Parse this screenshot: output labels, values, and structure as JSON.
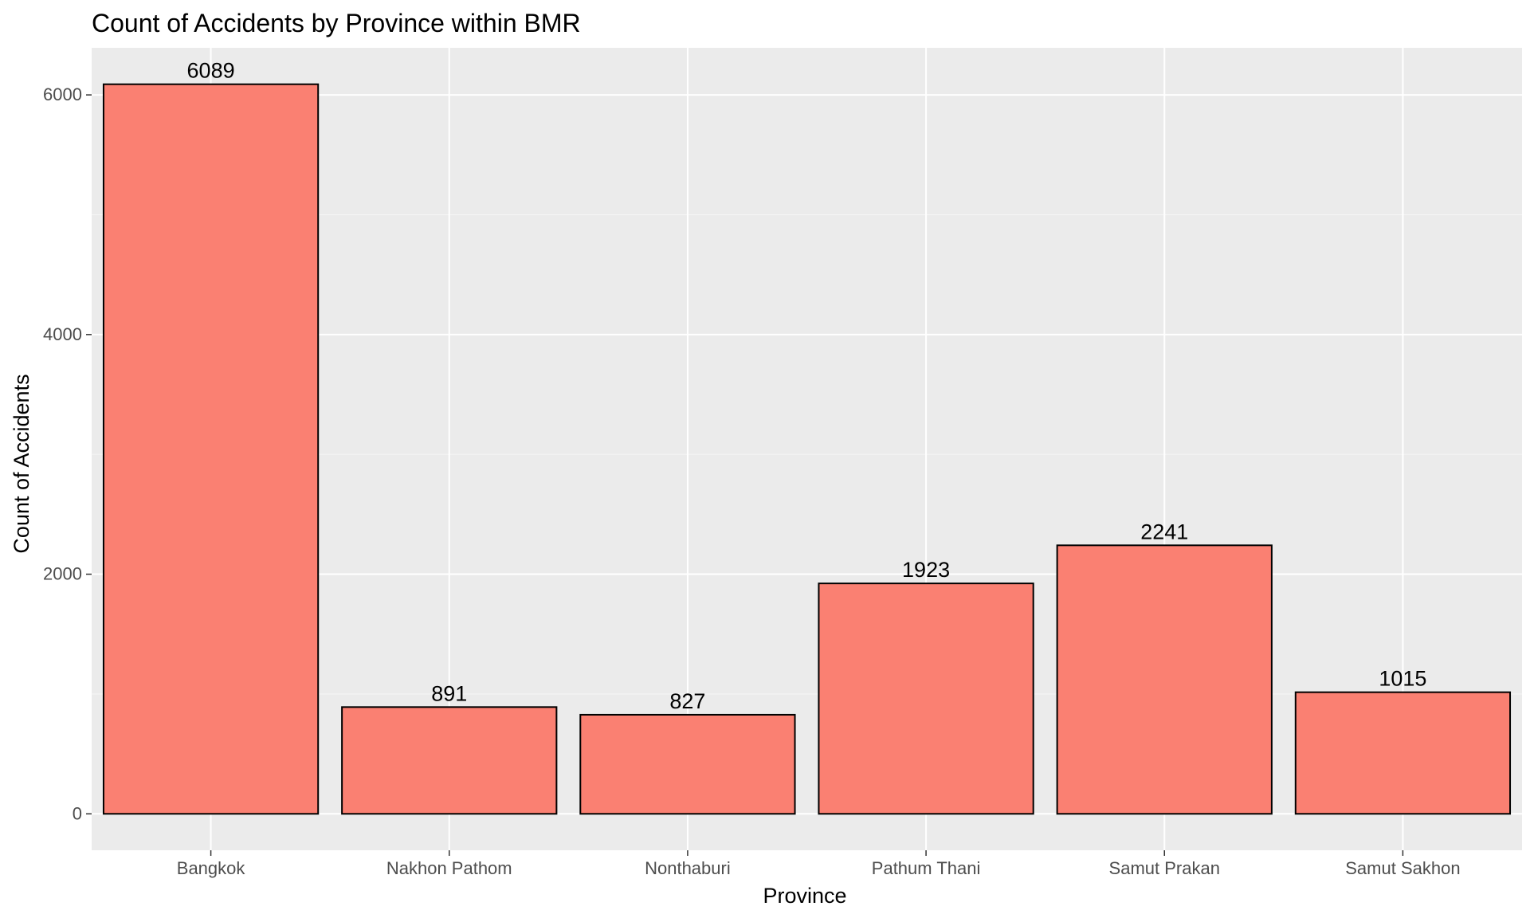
{
  "chart_data": {
    "type": "bar",
    "title": "Count of Accidents by Province within BMR",
    "xlabel": "Province",
    "ylabel": "Count of Accidents",
    "categories": [
      "Bangkok",
      "Nakhon Pathom",
      "Nonthaburi",
      "Pathum Thani",
      "Samut Prakan",
      "Samut Sakhon"
    ],
    "values": [
      6089,
      891,
      827,
      1923,
      2241,
      1015
    ],
    "data_labels": [
      "6089",
      "891",
      "827",
      "1923",
      "2241",
      "1015"
    ],
    "y_ticks": [
      0,
      2000,
      4000,
      6000
    ],
    "y_tick_labels": [
      "0",
      "2000",
      "4000",
      "6000"
    ],
    "ylim": [
      -304,
      6393
    ],
    "grid": true,
    "legend": "none",
    "colors": {
      "bar_fill": "#FA8072",
      "bar_stroke": "#000000",
      "panel_background": "#EBEBEB",
      "grid_major": "#FFFFFF",
      "grid_minor": "#F5F5F5",
      "tick_label": "#4D4D4D",
      "text": "#000000"
    }
  }
}
